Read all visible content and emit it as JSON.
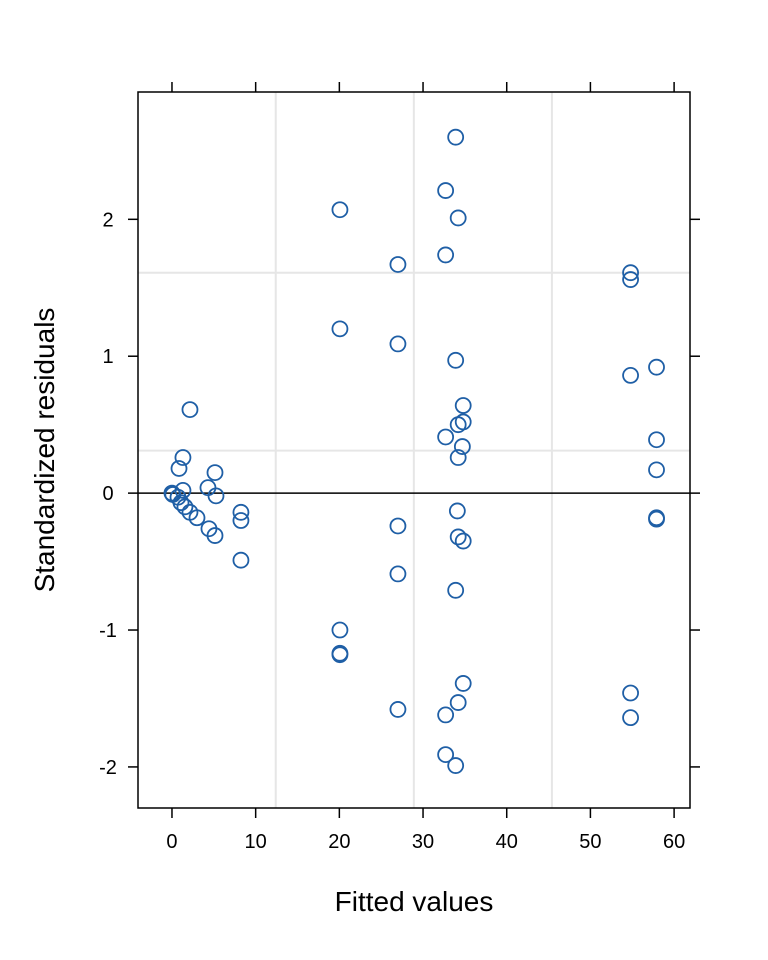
{
  "chart_data": {
    "type": "scatter",
    "title": "",
    "xlabel": "Fitted values",
    "ylabel": "Standardized residuals",
    "xlim": [
      -4.06,
      61.9
    ],
    "ylim": [
      -2.3,
      2.93
    ],
    "xticks": [
      0,
      10,
      20,
      30,
      40,
      50,
      60
    ],
    "yticks": [
      -2,
      -1,
      0,
      1,
      2
    ],
    "xtick_labels": [
      "0",
      "10",
      "20",
      "30",
      "40",
      "50",
      "60"
    ],
    "ytick_labels": [
      "-2",
      "-1",
      "0",
      "1",
      "2"
    ],
    "grid_x": [
      12.4,
      28.9,
      45.4
    ],
    "grid_y": [
      0.31,
      1.61
    ],
    "reference_line_y": 0,
    "marker": "open-circle",
    "colors": {
      "points": "#1f5fa6",
      "grid": "#e6e6e6",
      "axis": "#000000"
    },
    "points": [
      [
        2.15,
        0.61
      ],
      [
        1.31,
        0.26
      ],
      [
        0.84,
        0.18
      ],
      [
        0,
        0
      ],
      [
        0.1,
        -0.01
      ],
      [
        0.72,
        -0.03
      ],
      [
        1.31,
        0.02
      ],
      [
        1.08,
        -0.07
      ],
      [
        1.55,
        -0.1
      ],
      [
        2.15,
        -0.14
      ],
      [
        2.99,
        -0.18
      ],
      [
        4.42,
        -0.26
      ],
      [
        5.14,
        -0.31
      ],
      [
        4.3,
        0.04
      ],
      [
        5.14,
        0.15
      ],
      [
        5.26,
        -0.02
      ],
      [
        8.24,
        -0.14
      ],
      [
        8.24,
        -0.2
      ],
      [
        8.24,
        -0.49
      ],
      [
        20.07,
        2.07
      ],
      [
        20.07,
        1.2
      ],
      [
        20.07,
        -1.0
      ],
      [
        20.07,
        -1.18
      ],
      [
        20.07,
        -1.17
      ],
      [
        27.0,
        1.67
      ],
      [
        27.0,
        1.09
      ],
      [
        27.0,
        -0.24
      ],
      [
        27.0,
        -0.59
      ],
      [
        27.0,
        -1.58
      ],
      [
        32.7,
        2.21
      ],
      [
        32.7,
        1.74
      ],
      [
        32.7,
        0.41
      ],
      [
        32.7,
        -1.62
      ],
      [
        32.7,
        -1.91
      ],
      [
        33.9,
        2.6
      ],
      [
        33.9,
        -1.99
      ],
      [
        33.9,
        -0.71
      ],
      [
        34.2,
        2.01
      ],
      [
        33.9,
        0.97
      ],
      [
        34.2,
        0.5
      ],
      [
        34.8,
        0.52
      ],
      [
        34.8,
        0.64
      ],
      [
        34.7,
        0.34
      ],
      [
        34.2,
        0.26
      ],
      [
        34.1,
        -0.13
      ],
      [
        34.2,
        -0.32
      ],
      [
        34.8,
        -0.35
      ],
      [
        34.8,
        -1.39
      ],
      [
        34.2,
        -1.53
      ],
      [
        54.8,
        1.61
      ],
      [
        54.8,
        1.56
      ],
      [
        54.8,
        0.86
      ],
      [
        54.8,
        -1.46
      ],
      [
        54.8,
        -1.64
      ],
      [
        57.9,
        0.92
      ],
      [
        57.9,
        0.39
      ],
      [
        57.9,
        0.17
      ],
      [
        57.9,
        -0.18
      ],
      [
        57.9,
        -0.19
      ]
    ]
  }
}
